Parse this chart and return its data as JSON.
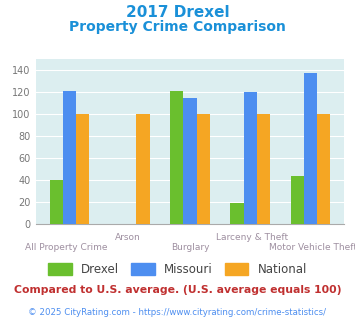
{
  "title_line1": "2017 Drexel",
  "title_line2": "Property Crime Comparison",
  "drexel": [
    40,
    0,
    121,
    19,
    44
  ],
  "missouri": [
    121,
    0,
    115,
    120,
    138
  ],
  "national": [
    100,
    100,
    100,
    100,
    100
  ],
  "drexel_color": "#6abf2e",
  "missouri_color": "#4d8ef0",
  "national_color": "#f5a623",
  "bg_color": "#dceef0",
  "title_color": "#1a90d8",
  "xlabel_color": "#9e8fa0",
  "ylabel_color": "#777777",
  "ylim": [
    0,
    150
  ],
  "yticks": [
    0,
    20,
    40,
    60,
    80,
    100,
    120,
    140
  ],
  "footnote1": "Compared to U.S. average. (U.S. average equals 100)",
  "footnote2": "© 2025 CityRating.com - https://www.cityrating.com/crime-statistics/",
  "footnote1_color": "#c03030",
  "footnote2_color": "#4d8ef0",
  "legend_labels": [
    "Drexel",
    "Missouri",
    "National"
  ],
  "bar_width": 0.22,
  "group_positions": [
    0,
    1,
    2,
    3,
    4
  ],
  "row1_indices": [
    1,
    3
  ],
  "row2_indices": [
    0,
    2,
    4
  ],
  "row1_labels": [
    "Arson",
    "Larceny & Theft"
  ],
  "row2_labels": [
    "All Property Crime",
    "Burglary",
    "Motor Vehicle Theft"
  ]
}
